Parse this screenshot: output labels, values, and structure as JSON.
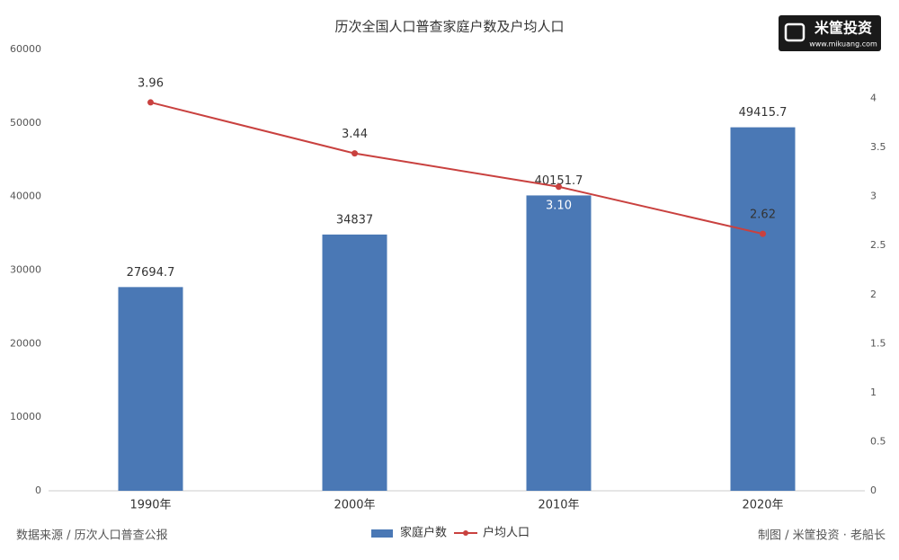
{
  "chart_data": {
    "type": "bar",
    "title": "历次全国人口普查家庭户数及户均人口",
    "categories": [
      "1990年",
      "2000年",
      "2010年",
      "2020年"
    ],
    "series": [
      {
        "name": "家庭户数",
        "type": "bar",
        "color": "#4a78b5",
        "values": [
          27694.7,
          34837,
          40151.7,
          49415.7
        ]
      },
      {
        "name": "户均人口",
        "type": "line",
        "axis": "y2",
        "color": "#c9413f",
        "values": [
          3.96,
          3.44,
          3.1,
          2.62
        ],
        "value_labels": [
          "3.96",
          "3.44",
          "3.10",
          "2.62"
        ]
      }
    ],
    "ylim": [
      0,
      60000
    ],
    "yticks": [
      0,
      10000,
      20000,
      30000,
      40000,
      50000,
      60000
    ],
    "y2lim": [
      0,
      4.5
    ],
    "y2ticks": [
      0,
      0.5,
      1,
      1.5,
      2,
      2.5,
      3,
      3.5,
      4
    ],
    "grid": false,
    "legend": "bottom",
    "source": "数据来源 / 历次人口普查公报",
    "credit": "制图 / 米筐投资 · 老船长",
    "logo": {
      "name": "米筐投资",
      "url": "www.mikuang.com"
    }
  }
}
